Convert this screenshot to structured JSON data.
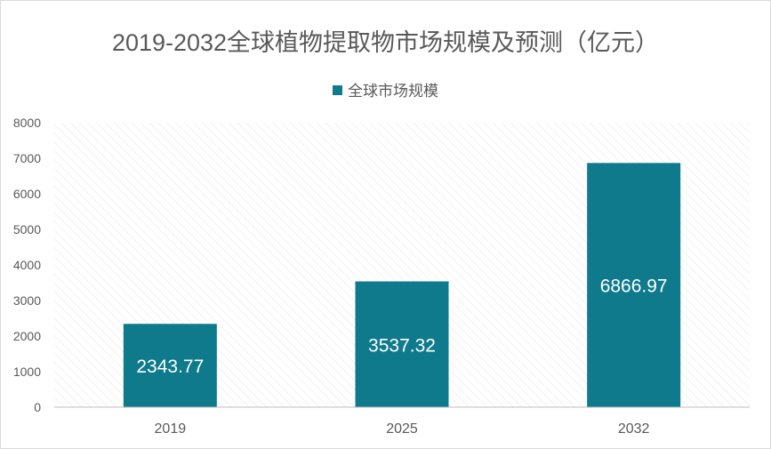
{
  "chart_data": {
    "type": "bar",
    "title": "2019-2032全球植物提取物市场规模及预测（亿元）",
    "legend": [
      "全球市场规模"
    ],
    "categories": [
      "2019",
      "2025",
      "2032"
    ],
    "series": [
      {
        "name": "全球市场规模",
        "values": [
          2343.77,
          3537.32,
          6866.97
        ]
      }
    ],
    "data_labels": [
      "2343.77",
      "3537.32",
      "6866.97"
    ],
    "yticks": [
      "0",
      "1000",
      "2000",
      "3000",
      "4000",
      "5000",
      "6000",
      "7000",
      "8000"
    ],
    "ylim": [
      0,
      8000
    ],
    "xlabel": "",
    "ylabel": "",
    "grid": false,
    "legend_position": "top",
    "colors": {
      "bar": "#0e7a8c",
      "plot_hatch": "#e4e4e4",
      "axis_text": "#595959",
      "label_text": "#ffffff"
    }
  }
}
